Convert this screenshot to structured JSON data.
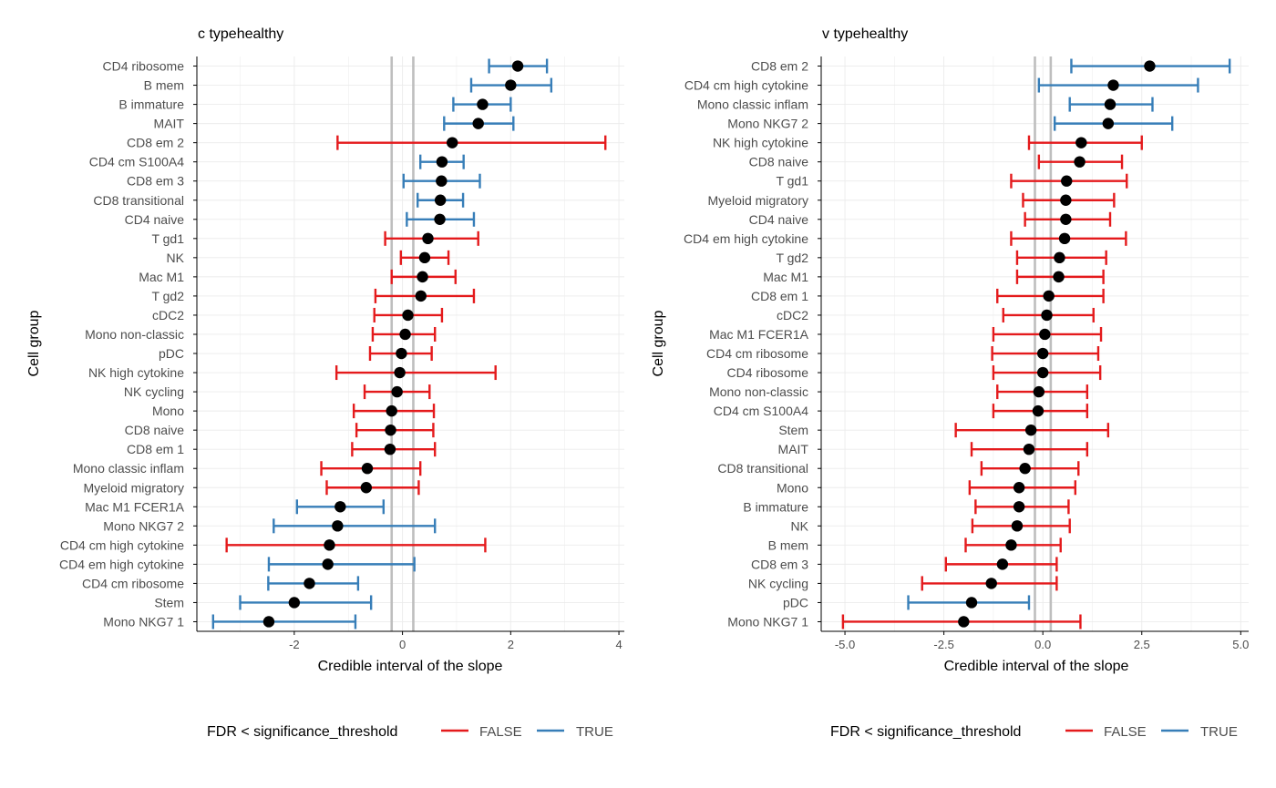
{
  "colors": {
    "false": "#E41A1C",
    "true": "#377EB8",
    "point": "#000000",
    "refline": "#BEBEBE",
    "grid": "#EBEBEB",
    "axis": "#000000",
    "text": "#4D4D4D",
    "title": "#000000"
  },
  "chart_data": [
    {
      "type": "forest",
      "title": "c typehealthy",
      "xlabel": "Credible interval of the slope",
      "ylabel": "Cell group",
      "xlim": [
        -3.8,
        4.1
      ],
      "xticks": [
        -2,
        0,
        2,
        4
      ],
      "xtick_labels": [
        "-2",
        "0",
        "2",
        "4"
      ],
      "reference_lines": [
        -0.2,
        0.2
      ],
      "legend": {
        "title": "FDR < significance_threshold",
        "entries": [
          "FALSE",
          "TRUE"
        ],
        "position": "bottom"
      },
      "rows": [
        {
          "label": "CD4 ribosome",
          "estimate": 2.13,
          "lower": 1.6,
          "upper": 2.67,
          "significant": true
        },
        {
          "label": "B mem",
          "estimate": 2.0,
          "lower": 1.27,
          "upper": 2.75,
          "significant": true
        },
        {
          "label": "B immature",
          "estimate": 1.48,
          "lower": 0.94,
          "upper": 2.0,
          "significant": true
        },
        {
          "label": "MAIT",
          "estimate": 1.4,
          "lower": 0.77,
          "upper": 2.05,
          "significant": true
        },
        {
          "label": "CD8 em 2",
          "estimate": 0.92,
          "lower": -1.2,
          "upper": 3.75,
          "significant": false
        },
        {
          "label": "CD4 cm S100A4",
          "estimate": 0.73,
          "lower": 0.33,
          "upper": 1.13,
          "significant": true
        },
        {
          "label": "CD8 em 3",
          "estimate": 0.72,
          "lower": 0.02,
          "upper": 1.43,
          "significant": true
        },
        {
          "label": "CD8 transitional",
          "estimate": 0.7,
          "lower": 0.28,
          "upper": 1.12,
          "significant": true
        },
        {
          "label": "CD4 naive",
          "estimate": 0.69,
          "lower": 0.08,
          "upper": 1.32,
          "significant": true
        },
        {
          "label": "T gd1",
          "estimate": 0.47,
          "lower": -0.32,
          "upper": 1.4,
          "significant": false
        },
        {
          "label": "NK",
          "estimate": 0.41,
          "lower": -0.03,
          "upper": 0.85,
          "significant": false
        },
        {
          "label": "Mac M1",
          "estimate": 0.37,
          "lower": -0.2,
          "upper": 0.98,
          "significant": false
        },
        {
          "label": "T gd2",
          "estimate": 0.34,
          "lower": -0.5,
          "upper": 1.32,
          "significant": false
        },
        {
          "label": "cDC2",
          "estimate": 0.1,
          "lower": -0.52,
          "upper": 0.73,
          "significant": false
        },
        {
          "label": "Mono non-classic",
          "estimate": 0.05,
          "lower": -0.55,
          "upper": 0.6,
          "significant": false
        },
        {
          "label": "pDC",
          "estimate": -0.02,
          "lower": -0.6,
          "upper": 0.54,
          "significant": false
        },
        {
          "label": "NK high cytokine",
          "estimate": -0.05,
          "lower": -1.22,
          "upper": 1.72,
          "significant": false
        },
        {
          "label": "NK cycling",
          "estimate": -0.1,
          "lower": -0.7,
          "upper": 0.5,
          "significant": false
        },
        {
          "label": "Mono",
          "estimate": -0.2,
          "lower": -0.9,
          "upper": 0.58,
          "significant": false
        },
        {
          "label": "CD8 naive",
          "estimate": -0.22,
          "lower": -0.85,
          "upper": 0.57,
          "significant": false
        },
        {
          "label": "CD8 em 1",
          "estimate": -0.23,
          "lower": -0.93,
          "upper": 0.6,
          "significant": false
        },
        {
          "label": "Mono classic inflam",
          "estimate": -0.65,
          "lower": -1.5,
          "upper": 0.33,
          "significant": false
        },
        {
          "label": "Myeloid migratory",
          "estimate": -0.67,
          "lower": -1.4,
          "upper": 0.3,
          "significant": false
        },
        {
          "label": "Mac M1 FCER1A",
          "estimate": -1.15,
          "lower": -1.95,
          "upper": -0.35,
          "significant": true
        },
        {
          "label": "Mono NKG7 2",
          "estimate": -1.2,
          "lower": -2.38,
          "upper": 0.6,
          "significant": true
        },
        {
          "label": "CD4 cm high cytokine",
          "estimate": -1.35,
          "lower": -3.25,
          "upper": 1.53,
          "significant": false
        },
        {
          "label": "CD4 em high cytokine",
          "estimate": -1.38,
          "lower": -2.47,
          "upper": 0.22,
          "significant": true
        },
        {
          "label": "CD4 cm ribosome",
          "estimate": -1.72,
          "lower": -2.48,
          "upper": -0.82,
          "significant": true
        },
        {
          "label": "Stem",
          "estimate": -2.0,
          "lower": -3.0,
          "upper": -0.58,
          "significant": true
        },
        {
          "label": "Mono NKG7 1",
          "estimate": -2.47,
          "lower": -3.5,
          "upper": -0.87,
          "significant": true
        }
      ]
    },
    {
      "type": "forest",
      "title": "v typehealthy",
      "xlabel": "Credible interval of the slope",
      "ylabel": "Cell group",
      "xlim": [
        -5.6,
        5.2
      ],
      "xticks": [
        -5,
        -2.5,
        0,
        2.5,
        5
      ],
      "xtick_labels": [
        "-5.0",
        "-2.5",
        "0.0",
        "2.5",
        "5.0"
      ],
      "reference_lines": [
        -0.2,
        0.2
      ],
      "legend": {
        "title": "FDR < significance_threshold",
        "entries": [
          "FALSE",
          "TRUE"
        ],
        "position": "bottom"
      },
      "rows": [
        {
          "label": "CD8 em 2",
          "estimate": 2.7,
          "lower": 0.72,
          "upper": 4.72,
          "significant": true
        },
        {
          "label": "CD4 cm high cytokine",
          "estimate": 1.78,
          "lower": -0.1,
          "upper": 3.92,
          "significant": true
        },
        {
          "label": "Mono classic inflam",
          "estimate": 1.7,
          "lower": 0.68,
          "upper": 2.77,
          "significant": true
        },
        {
          "label": "Mono NKG7 2",
          "estimate": 1.65,
          "lower": 0.3,
          "upper": 3.27,
          "significant": true
        },
        {
          "label": "NK high cytokine",
          "estimate": 0.97,
          "lower": -0.35,
          "upper": 2.5,
          "significant": false
        },
        {
          "label": "CD8 naive",
          "estimate": 0.93,
          "lower": -0.1,
          "upper": 2.0,
          "significant": false
        },
        {
          "label": "T gd1",
          "estimate": 0.6,
          "lower": -0.8,
          "upper": 2.12,
          "significant": false
        },
        {
          "label": "Myeloid migratory",
          "estimate": 0.58,
          "lower": -0.5,
          "upper": 1.8,
          "significant": false
        },
        {
          "label": "CD4 naive",
          "estimate": 0.58,
          "lower": -0.45,
          "upper": 1.7,
          "significant": false
        },
        {
          "label": "CD4 em high cytokine",
          "estimate": 0.55,
          "lower": -0.8,
          "upper": 2.1,
          "significant": false
        },
        {
          "label": "T gd2",
          "estimate": 0.42,
          "lower": -0.65,
          "upper": 1.6,
          "significant": false
        },
        {
          "label": "Mac M1",
          "estimate": 0.4,
          "lower": -0.65,
          "upper": 1.53,
          "significant": false
        },
        {
          "label": "CD8 em 1",
          "estimate": 0.15,
          "lower": -1.15,
          "upper": 1.53,
          "significant": false
        },
        {
          "label": "cDC2",
          "estimate": 0.1,
          "lower": -1.0,
          "upper": 1.28,
          "significant": false
        },
        {
          "label": "Mac M1 FCER1A",
          "estimate": 0.05,
          "lower": -1.25,
          "upper": 1.47,
          "significant": false
        },
        {
          "label": "CD4 cm ribosome",
          "estimate": 0.0,
          "lower": -1.28,
          "upper": 1.4,
          "significant": false
        },
        {
          "label": "CD4 ribosome",
          "estimate": 0.0,
          "lower": -1.25,
          "upper": 1.45,
          "significant": false
        },
        {
          "label": "Mono non-classic",
          "estimate": -0.1,
          "lower": -1.15,
          "upper": 1.12,
          "significant": false
        },
        {
          "label": "CD4 cm S100A4",
          "estimate": -0.12,
          "lower": -1.25,
          "upper": 1.12,
          "significant": false
        },
        {
          "label": "Stem",
          "estimate": -0.3,
          "lower": -2.2,
          "upper": 1.65,
          "significant": false
        },
        {
          "label": "MAIT",
          "estimate": -0.35,
          "lower": -1.8,
          "upper": 1.12,
          "significant": false
        },
        {
          "label": "CD8 transitional",
          "estimate": -0.45,
          "lower": -1.55,
          "upper": 0.9,
          "significant": false
        },
        {
          "label": "Mono",
          "estimate": -0.6,
          "lower": -1.85,
          "upper": 0.82,
          "significant": false
        },
        {
          "label": "B immature",
          "estimate": -0.6,
          "lower": -1.7,
          "upper": 0.65,
          "significant": false
        },
        {
          "label": "NK",
          "estimate": -0.65,
          "lower": -1.78,
          "upper": 0.68,
          "significant": false
        },
        {
          "label": "B mem",
          "estimate": -0.8,
          "lower": -1.95,
          "upper": 0.45,
          "significant": false
        },
        {
          "label": "CD8 em 3",
          "estimate": -1.02,
          "lower": -2.45,
          "upper": 0.35,
          "significant": false
        },
        {
          "label": "NK cycling",
          "estimate": -1.3,
          "lower": -3.05,
          "upper": 0.35,
          "significant": false
        },
        {
          "label": "pDC",
          "estimate": -1.8,
          "lower": -3.4,
          "upper": -0.35,
          "significant": true
        },
        {
          "label": "Mono NKG7 1",
          "estimate": -2.0,
          "lower": -5.05,
          "upper": 0.95,
          "significant": false
        }
      ]
    }
  ]
}
